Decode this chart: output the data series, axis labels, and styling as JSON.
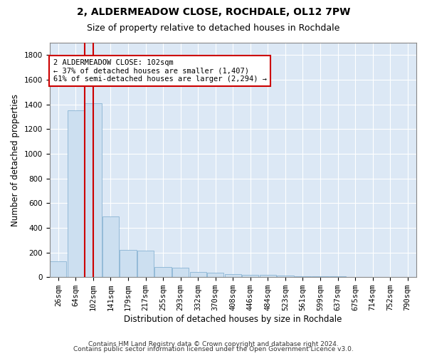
{
  "title": "2, ALDERMEADOW CLOSE, ROCHDALE, OL12 7PW",
  "subtitle": "Size of property relative to detached houses in Rochdale",
  "xlabel": "Distribution of detached houses by size in Rochdale",
  "ylabel": "Number of detached properties",
  "footer_line1": "Contains HM Land Registry data © Crown copyright and database right 2024.",
  "footer_line2": "Contains public sector information licensed under the Open Government Licence v3.0.",
  "annotation_line1": "2 ALDERMEADOW CLOSE: 102sqm",
  "annotation_line2": "← 37% of detached houses are smaller (1,407)",
  "annotation_line3": "61% of semi-detached houses are larger (2,294) →",
  "bar_labels": [
    "26sqm",
    "64sqm",
    "102sqm",
    "141sqm",
    "179sqm",
    "217sqm",
    "255sqm",
    "293sqm",
    "332sqm",
    "370sqm",
    "408sqm",
    "446sqm",
    "484sqm",
    "523sqm",
    "561sqm",
    "599sqm",
    "637sqm",
    "675sqm",
    "714sqm",
    "752sqm",
    "790sqm"
  ],
  "bar_heights": [
    130,
    1350,
    1410,
    490,
    220,
    215,
    80,
    75,
    40,
    35,
    25,
    20,
    20,
    15,
    8,
    8,
    8,
    2,
    2,
    2,
    0
  ],
  "red_bar_index": 2,
  "bar_color": "#ccdff0",
  "bar_edge_color": "#8ab4d4",
  "red_line_bar_index": 2,
  "ylim": [
    0,
    1900
  ],
  "yticks": [
    0,
    200,
    400,
    600,
    800,
    1000,
    1200,
    1400,
    1600,
    1800
  ],
  "background_color": "#dce8f5",
  "plot_bg_color": "#dce8f5",
  "annotation_box_color": "#ffffff",
  "annotation_box_edge_color": "#cc0000",
  "red_line_color": "#cc0000",
  "title_fontsize": 10,
  "subtitle_fontsize": 9,
  "axis_label_fontsize": 8.5,
  "tick_fontsize": 7.5,
  "annotation_fontsize": 7.5,
  "footer_fontsize": 6.5
}
